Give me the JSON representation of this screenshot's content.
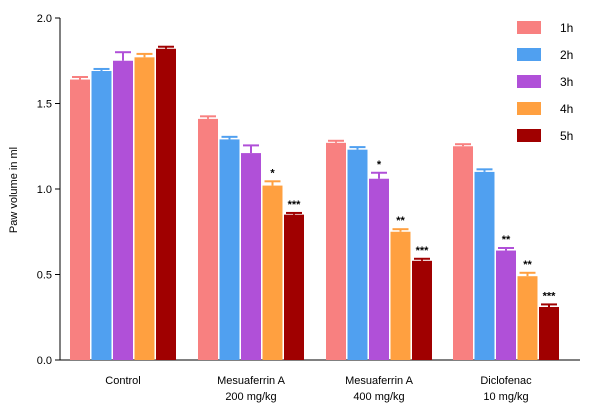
{
  "chart_data": {
    "type": "bar",
    "ylabel": "Paw volume in ml",
    "xlabel": "",
    "ylim": [
      0,
      2.0
    ],
    "yticks": [
      "0.0",
      "0.5",
      "1.0",
      "1.5",
      "2.0"
    ],
    "categories": [
      [
        "Control"
      ],
      [
        "Mesuaferrin A",
        "200 mg/kg"
      ],
      [
        "Mesuaferrin A",
        "400 mg/kg"
      ],
      [
        "Diclofenac",
        "10 mg/kg"
      ]
    ],
    "legend_position": "top-right",
    "series": [
      {
        "name": "1h",
        "color": "#f88080",
        "values": [
          1.64,
          1.41,
          1.27,
          1.25
        ],
        "errors": [
          0.015,
          0.015,
          0.012,
          0.012
        ],
        "sig": [
          "",
          "",
          "",
          ""
        ]
      },
      {
        "name": "2h",
        "color": "#50a0f0",
        "values": [
          1.69,
          1.29,
          1.23,
          1.1
        ],
        "errors": [
          0.012,
          0.015,
          0.015,
          0.015
        ],
        "sig": [
          "",
          "",
          "",
          ""
        ]
      },
      {
        "name": "3h",
        "color": "#b050d8",
        "values": [
          1.75,
          1.21,
          1.06,
          0.64
        ],
        "errors": [
          0.05,
          0.045,
          0.035,
          0.015
        ],
        "sig": [
          "",
          "",
          "*",
          "**"
        ]
      },
      {
        "name": "4h",
        "color": "#ffa040",
        "values": [
          1.77,
          1.02,
          0.75,
          0.49
        ],
        "errors": [
          0.02,
          0.025,
          0.015,
          0.02
        ],
        "sig": [
          "",
          "*",
          "**",
          "**"
        ]
      },
      {
        "name": "5h",
        "color": "#a00000",
        "values": [
          1.82,
          0.85,
          0.58,
          0.31
        ],
        "errors": [
          0.012,
          0.01,
          0.012,
          0.015
        ],
        "sig": [
          "",
          "***",
          "***",
          "***"
        ]
      }
    ]
  }
}
